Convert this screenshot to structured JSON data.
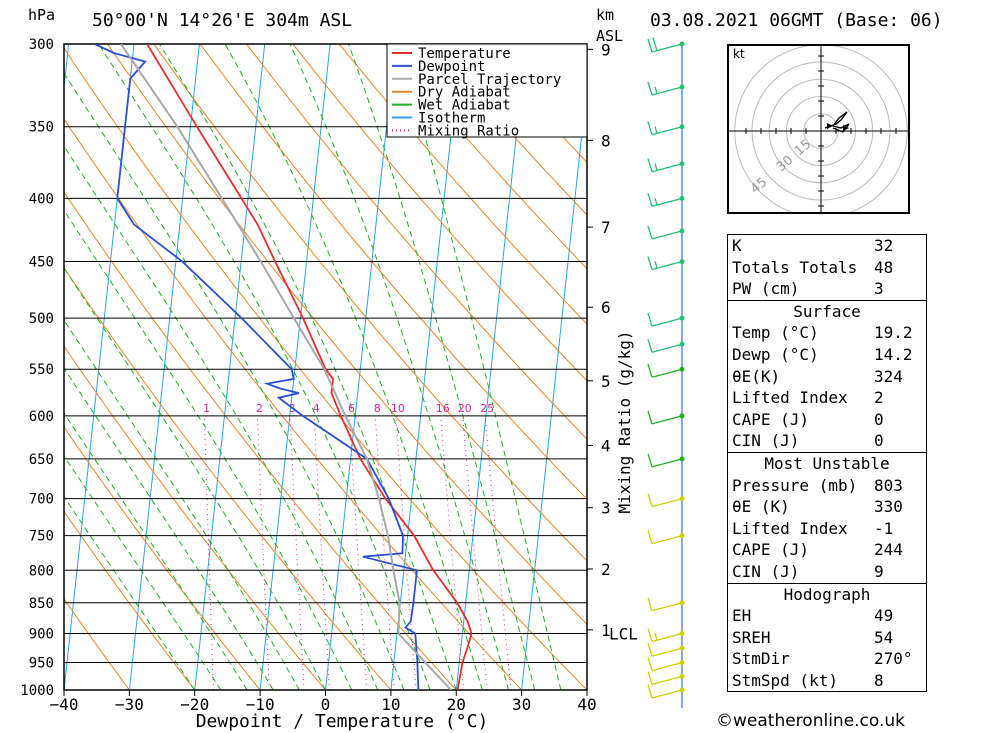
{
  "header": {
    "location": "50°00'N  14°26'E  304m  ASL",
    "datetime": "03.08.2021  06GMT  (Base: 06)",
    "pressure_unit": "hPa",
    "height_unit_top": "km",
    "height_unit_bottom": "ASL"
  },
  "chart_data": {
    "type": "line",
    "title": "50°00'N  14°26'E  304m  ASL",
    "xlabel": "Dewpoint / Temperature (°C)",
    "ylabel": "hPa",
    "mixing_ratio_label": "Mixing Ratio (g/kg)",
    "xlim": [
      -40,
      40
    ],
    "ylim": [
      1000,
      300
    ],
    "x_ticks": [
      -40,
      -30,
      -20,
      -10,
      0,
      10,
      20,
      30,
      40
    ],
    "x_tick_labels": [
      "−40",
      "−30",
      "−20",
      "−10",
      "0",
      "10",
      "20",
      "30",
      "40"
    ],
    "y_ticks": [
      300,
      350,
      400,
      450,
      500,
      550,
      600,
      650,
      700,
      750,
      800,
      850,
      900,
      950,
      1000
    ],
    "height_ticks_km": [
      {
        "label": "9",
        "p": 303
      },
      {
        "label": "8",
        "p": 359
      },
      {
        "label": "7",
        "p": 422
      },
      {
        "label": "6",
        "p": 490
      },
      {
        "label": "5",
        "p": 562
      },
      {
        "label": "4",
        "p": 634
      },
      {
        "label": "3",
        "p": 712
      },
      {
        "label": "2",
        "p": 798
      },
      {
        "label": "1",
        "p": 894
      }
    ],
    "lcl": {
      "label": "LCL",
      "p": 900
    },
    "mixing_ratio_labels": [
      "1",
      "2",
      "3",
      "4",
      "6",
      "8",
      "10",
      "16",
      "20",
      "25"
    ],
    "legend": {
      "placement": "top",
      "entries": [
        {
          "label": "Temperature",
          "color": "#e62e2e"
        },
        {
          "label": "Dewpoint",
          "color": "#2a4fd6"
        },
        {
          "label": "Parcel Trajectory",
          "color": "#a8a8a8"
        },
        {
          "label": "Dry Adiabat",
          "color": "#e8862a"
        },
        {
          "label": "Wet Adiabat",
          "color": "#22b022"
        },
        {
          "label": "Isotherm",
          "color": "#2aa3e8"
        },
        {
          "label": "Mixing Ratio",
          "color": "#e020a0"
        }
      ]
    },
    "series": [
      {
        "name": "Temperature",
        "color": "#e62e2e",
        "points": [
          [
            1000,
            20.2
          ],
          [
            950,
            20.5
          ],
          [
            925,
            21.0
          ],
          [
            900,
            21.4
          ],
          [
            880,
            20.6
          ],
          [
            850,
            18.7
          ],
          [
            800,
            14.5
          ],
          [
            750,
            11.0
          ],
          [
            700,
            6.0
          ],
          [
            650,
            1.5
          ],
          [
            600,
            -2.2
          ],
          [
            575,
            -4.0
          ],
          [
            560,
            -4.0
          ],
          [
            550,
            -5.3
          ],
          [
            500,
            -9.6
          ],
          [
            450,
            -14.8
          ],
          [
            420,
            -18.1
          ],
          [
            400,
            -21.0
          ],
          [
            350,
            -29.0
          ],
          [
            300,
            -38.0
          ]
        ]
      },
      {
        "name": "Dewpoint",
        "color": "#2a4fd6",
        "points": [
          [
            1000,
            14.2
          ],
          [
            950,
            13.6
          ],
          [
            900,
            12.8
          ],
          [
            890,
            11.2
          ],
          [
            880,
            11.9
          ],
          [
            850,
            12.0
          ],
          [
            800,
            12.0
          ],
          [
            780,
            3.5
          ],
          [
            775,
            9.5
          ],
          [
            750,
            9.3
          ],
          [
            700,
            6.5
          ],
          [
            650,
            2.5
          ],
          [
            600,
            -8.0
          ],
          [
            590,
            -10.0
          ],
          [
            580,
            -12.0
          ],
          [
            575,
            -9.0
          ],
          [
            570,
            -12.0
          ],
          [
            565,
            -14.0
          ],
          [
            560,
            -10.0
          ],
          [
            550,
            -10.5
          ],
          [
            500,
            -19.0
          ],
          [
            450,
            -29.0
          ],
          [
            420,
            -37.0
          ],
          [
            400,
            -40.0
          ],
          [
            350,
            -40.0
          ],
          [
            320,
            -40.0
          ],
          [
            310,
            -38.0
          ],
          [
            305,
            -43.0
          ],
          [
            300,
            -46.0
          ]
        ]
      },
      {
        "name": "Parcel Trajectory",
        "color": "#a8a8a8",
        "points": [
          [
            1000,
            19.2
          ],
          [
            950,
            14.8
          ],
          [
            900,
            10.2
          ],
          [
            850,
            9.9
          ],
          [
            800,
            8.4
          ],
          [
            750,
            7.0
          ],
          [
            700,
            5.0
          ],
          [
            650,
            2.5
          ],
          [
            600,
            -1.5
          ],
          [
            550,
            -5.5
          ],
          [
            500,
            -11.0
          ],
          [
            450,
            -17.0
          ],
          [
            400,
            -24.0
          ],
          [
            350,
            -32.0
          ],
          [
            300,
            -42.0
          ]
        ]
      }
    ],
    "wind_barbs": [
      {
        "p": 1000,
        "speed_kt": 10
      },
      {
        "p": 975,
        "speed_kt": 10
      },
      {
        "p": 950,
        "speed_kt": 10
      },
      {
        "p": 925,
        "speed_kt": 10
      },
      {
        "p": 900,
        "speed_kt": 15
      },
      {
        "p": 850,
        "speed_kt": 10
      },
      {
        "p": 750,
        "speed_kt": 10
      },
      {
        "p": 700,
        "speed_kt": 10
      },
      {
        "p": 650,
        "speed_kt": 10
      },
      {
        "p": 600,
        "speed_kt": 10
      },
      {
        "p": 550,
        "speed_kt": 10
      },
      {
        "p": 525,
        "speed_kt": 10
      },
      {
        "p": 500,
        "speed_kt": 10
      },
      {
        "p": 450,
        "speed_kt": 15
      },
      {
        "p": 425,
        "speed_kt": 10
      },
      {
        "p": 400,
        "speed_kt": 15
      },
      {
        "p": 375,
        "speed_kt": 15
      },
      {
        "p": 350,
        "speed_kt": 15
      },
      {
        "p": 325,
        "speed_kt": 15
      },
      {
        "p": 300,
        "speed_kt": 20
      }
    ]
  },
  "hodograph": {
    "unit": "kt",
    "ring_labels": [
      "15",
      "30",
      "45"
    ]
  },
  "indices": {
    "general": [
      {
        "label": "K",
        "value": "32"
      },
      {
        "label": "Totals Totals",
        "value": "48"
      },
      {
        "label": "PW (cm)",
        "value": "3"
      }
    ],
    "surface_title": "Surface",
    "surface": [
      {
        "label": "Temp (°C)",
        "value": "19.2"
      },
      {
        "label": "Dewp (°C)",
        "value": "14.2"
      },
      {
        "label": "θE(K)",
        "value": "324"
      },
      {
        "label": "Lifted Index",
        "value": "2"
      },
      {
        "label": "CAPE (J)",
        "value": "0"
      },
      {
        "label": "CIN (J)",
        "value": "0"
      }
    ],
    "mu_title": "Most Unstable",
    "mu": [
      {
        "label": "Pressure (mb)",
        "value": "803"
      },
      {
        "label": "θE (K)",
        "value": "330"
      },
      {
        "label": "Lifted Index",
        "value": "-1"
      },
      {
        "label": "CAPE (J)",
        "value": "244"
      },
      {
        "label": "CIN (J)",
        "value": "9"
      }
    ],
    "hodo_title": "Hodograph",
    "hodo": [
      {
        "label": "EH",
        "value": "49"
      },
      {
        "label": "SREH",
        "value": "54"
      },
      {
        "label": "StmDir",
        "value": "270°"
      },
      {
        "label": "StmSpd (kt)",
        "value": "8"
      }
    ]
  },
  "credit": "©weatheronline.co.uk"
}
